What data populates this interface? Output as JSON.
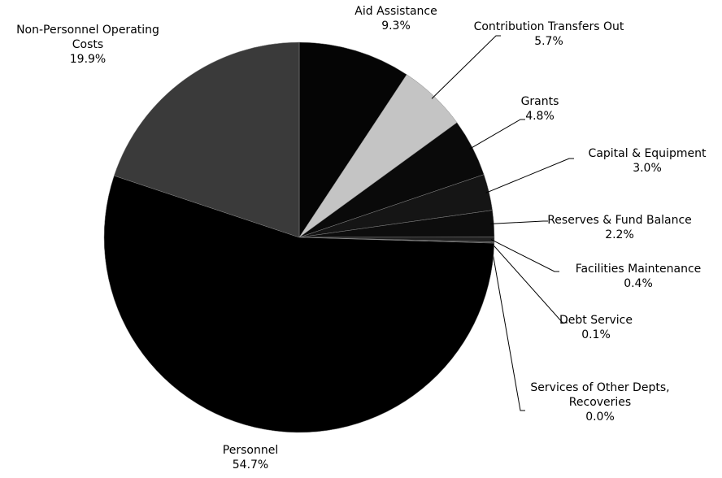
{
  "chart_data": {
    "type": "pie",
    "categories": [
      "Aid Assistance",
      "Contribution Transfers Out",
      "Grants",
      "Capital & Equipment",
      "Reserves & Fund Balance",
      "Facilities Maintenance",
      "Debt Service",
      "Services of Other Depts, Recoveries",
      "Personnel",
      "Non-Personnel Operating Costs"
    ],
    "values": [
      9.3,
      5.7,
      4.8,
      3.0,
      2.2,
      0.4,
      0.1,
      0.0,
      54.7,
      19.9
    ],
    "value_labels": [
      "9.3%",
      "5.7%",
      "4.8%",
      "3.0%",
      "2.2%",
      "0.4%",
      "0.1%",
      "0.0%",
      "54.7%",
      "19.9%"
    ],
    "colors": [
      "#050505",
      "#c4c4c4",
      "#0a0a0a",
      "#151515",
      "#0d0d0d",
      "#202020",
      "#303030",
      "#404040",
      "#000000",
      "#3a3a3a"
    ]
  }
}
